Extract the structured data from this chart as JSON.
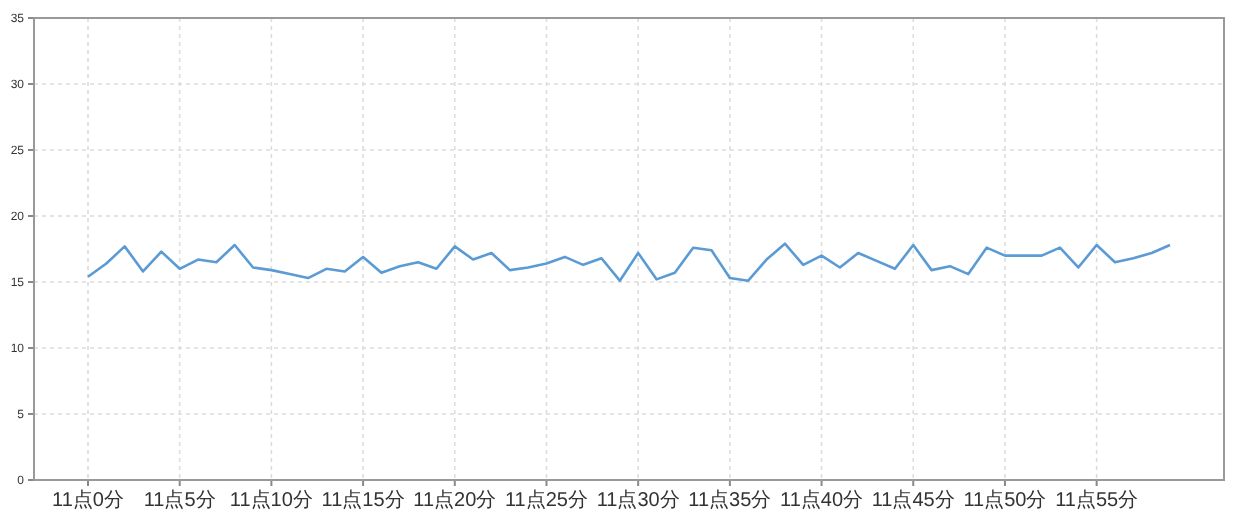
{
  "chart_data": {
    "type": "line",
    "categories": [
      "11点0分",
      null,
      null,
      null,
      null,
      "11点5分",
      null,
      null,
      null,
      null,
      "11点10分",
      null,
      null,
      null,
      null,
      "11点15分",
      null,
      null,
      null,
      null,
      "11点20分",
      null,
      null,
      null,
      null,
      "11点25分",
      null,
      null,
      null,
      null,
      "11点30分",
      null,
      null,
      null,
      null,
      "11点35分",
      null,
      null,
      null,
      null,
      "11点40分",
      null,
      null,
      null,
      null,
      "11点45分",
      null,
      null,
      null,
      null,
      "11点50分",
      null,
      null,
      null,
      null,
      "11点55分",
      null,
      null,
      null,
      null
    ],
    "series": [
      {
        "color": "#5b9bd5",
        "values": [
          15.4,
          16.4,
          17.7,
          15.8,
          17.3,
          16.0,
          16.7,
          16.5,
          17.8,
          16.1,
          15.9,
          15.6,
          15.3,
          16.0,
          15.8,
          16.9,
          15.7,
          16.2,
          16.5,
          16.0,
          17.7,
          16.7,
          17.2,
          15.9,
          16.1,
          16.4,
          16.9,
          16.3,
          16.8,
          15.1,
          17.2,
          15.2,
          15.7,
          17.6,
          17.4,
          15.3,
          15.1,
          16.7,
          17.9,
          16.3,
          17.0,
          16.1,
          17.2,
          16.6,
          16.0,
          17.8,
          15.9,
          16.2,
          15.6,
          17.6,
          17.0,
          17.0,
          17.0,
          17.6,
          16.1,
          17.8,
          16.5,
          16.8,
          17.2,
          17.8
        ]
      }
    ],
    "ylim": [
      0,
      35
    ],
    "yticks": [
      0,
      5,
      10,
      15,
      20,
      25,
      30,
      35
    ],
    "grid": true,
    "marker": "none",
    "line_style": "solid"
  }
}
